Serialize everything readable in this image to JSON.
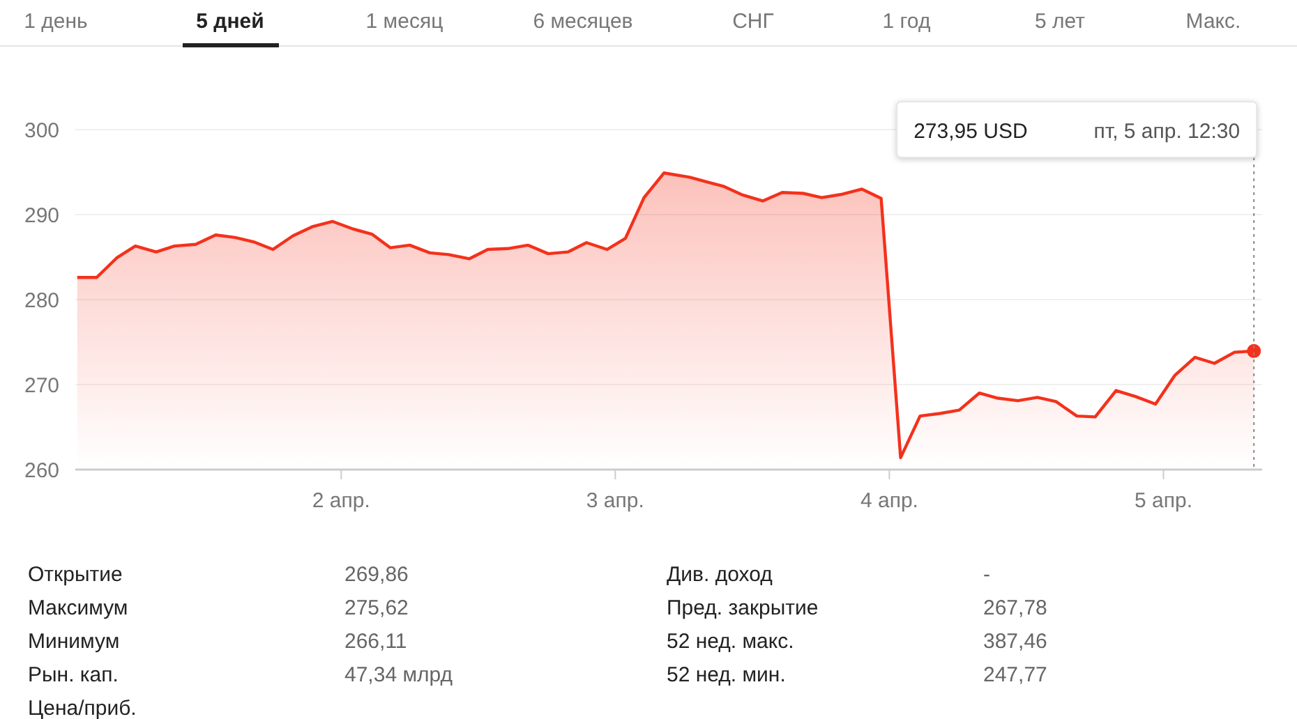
{
  "chart_data": {
    "type": "area",
    "x": [
      1.037,
      1.108,
      1.181,
      1.249,
      1.325,
      1.392,
      1.469,
      1.542,
      1.613,
      1.68,
      1.751,
      1.824,
      1.897,
      1.968,
      2.044,
      2.112,
      2.179,
      2.25,
      2.323,
      2.391,
      2.467,
      2.535,
      2.608,
      2.682,
      2.755,
      2.827,
      2.895,
      2.97,
      3.037,
      3.105,
      3.178,
      3.271,
      3.339,
      3.397,
      3.465,
      3.538,
      3.609,
      3.685,
      3.753,
      3.829,
      3.9,
      3.97,
      4.041,
      4.112,
      4.184,
      4.255,
      4.328,
      4.396,
      4.469,
      4.54,
      4.608,
      4.684,
      4.751,
      4.827,
      4.898,
      4.971,
      5.042,
      5.115,
      5.186,
      5.259,
      5.33
    ],
    "series": [
      {
        "color": "#f4311c",
        "values": [
          282.6,
          282.6,
          284.9,
          286.3,
          285.6,
          286.3,
          286.5,
          287.6,
          287.3,
          286.8,
          285.9,
          287.5,
          288.6,
          289.2,
          288.3,
          287.7,
          286.1,
          286.4,
          285.5,
          285.3,
          284.8,
          285.9,
          286.0,
          286.4,
          285.4,
          285.6,
          286.7,
          285.9,
          287.2,
          292.0,
          294.9,
          294.4,
          293.8,
          293.3,
          292.3,
          291.6,
          292.6,
          292.5,
          292.0,
          292.4,
          293.0,
          291.9,
          261.4,
          266.3,
          266.6,
          267.0,
          269.0,
          268.4,
          268.1,
          268.5,
          268.0,
          266.3,
          266.2,
          269.3,
          268.6,
          267.7,
          271.1,
          273.2,
          272.5,
          273.8,
          273.95
        ]
      },
      {
        "type": "scatter",
        "marker": "circle",
        "color": "#f4311c",
        "x": [
          5.33
        ],
        "values": [
          273.95
        ]
      }
    ],
    "xlim": [
      1.03,
      5.36
    ],
    "xticks": [
      {
        "value": 2,
        "label": "2 апр."
      },
      {
        "value": 3,
        "label": "3 апр."
      },
      {
        "value": 4,
        "label": "4 апр."
      },
      {
        "value": 5,
        "label": "5 апр."
      }
    ],
    "ylim": [
      260,
      300
    ],
    "yticks": [
      260,
      270,
      280,
      290,
      300
    ],
    "grid": "y",
    "marker": "none",
    "line_style": "solid",
    "ref_lines": [
      {
        "axis": "x",
        "value": 5.33,
        "label": "пт, 5 апр. 12:30",
        "line_style": "dotted",
        "color": "#888888"
      }
    ],
    "annotations": [
      "273,95 USD",
      "1 день",
      "5 дней",
      "1 месяц",
      "6 месяцев",
      "СНГ",
      "1 год",
      "5 лет",
      "Макс.",
      "Открытие",
      "269,86",
      "Див. доход",
      "-",
      "Максимум",
      "275,62",
      "Пред. закрытие",
      "267,78",
      "Минимум",
      "266,11",
      "52 нед. макс.",
      "387,46",
      "Рын. кап.",
      "47,34 млрд",
      "52 нед. мин.",
      "247,77",
      "Цена/приб."
    ]
  }
}
